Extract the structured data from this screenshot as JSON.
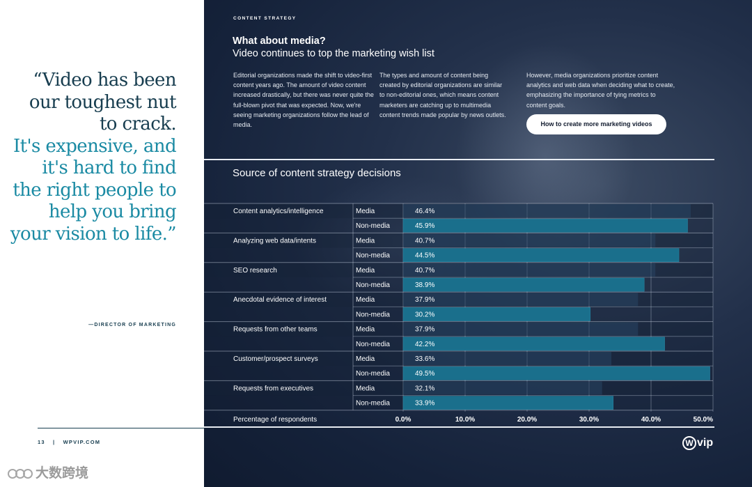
{
  "quote": {
    "part1": "“Video has been our toughest nut to crack.",
    "part2": "It's expensive, and it's hard to find the right people to help you bring your vision to life.”",
    "attribution": "—DIRECTOR OF MARKETING"
  },
  "footer": {
    "page": "13",
    "separator": "|",
    "site": "WPVIP.COM"
  },
  "watermark": {
    "text": "大数跨境"
  },
  "panel": {
    "kicker": "CONTENT STRATEGY",
    "title": "What about media?",
    "subtitle": "Video continues to top the marketing wish list",
    "col1": "Editorial organizations made the shift to video-first content years ago. The amount of video content increased drastically, but there was never quite the full-blown pivot that was expected. Now, we're seeing marketing organizations follow the lead of media.",
    "col2": "The types and amount of content being created by editorial organizations are similar to non-editorial ones, which means content marketers are catching up to multimedia content trends made popular by news outlets.",
    "col3": "However, media organizations prioritize content analytics and web data when deciding what to create, emphasizing the importance of tying metrics to content goals.",
    "cta": "How to create more marketing videos",
    "logo": "vip",
    "logo_mark": "W"
  },
  "colors": {
    "bar": "#1a6f8c",
    "navy": "#173d4f",
    "teal": "#1a8aa3"
  },
  "chart_data": {
    "type": "bar",
    "orientation": "horizontal",
    "title": "Source of content strategy decisions",
    "xlabel": "Percentage of respondents",
    "xlim": [
      0,
      50
    ],
    "ticks": [
      0,
      10,
      20,
      30,
      40,
      50
    ],
    "tick_labels": [
      "0.0%",
      "10.0%",
      "20.0%",
      "30.0%",
      "40.0%",
      "50.0%"
    ],
    "series_names": [
      "Media",
      "Non-media"
    ],
    "categories": [
      "Content analytics/intelligence",
      "Analyzing web data/intents",
      "SEO research",
      "Anecdotal evidence of interest",
      "Requests from other teams",
      "Customer/prospect surveys",
      "Requests from executives"
    ],
    "series": [
      {
        "name": "Media",
        "values": [
          46.4,
          40.7,
          40.7,
          37.9,
          37.9,
          33.6,
          32.1
        ],
        "labels": [
          "46.4%",
          "40.7%",
          "40.7%",
          "37.9%",
          "37.9%",
          "33.6%",
          "32.1%"
        ]
      },
      {
        "name": "Non-media",
        "values": [
          45.9,
          44.5,
          38.9,
          30.2,
          42.2,
          49.5,
          33.9
        ],
        "labels": [
          "45.9%",
          "44.5%",
          "38.9%",
          "30.2%",
          "42.2%",
          "49.5%",
          "33.9%"
        ]
      }
    ]
  }
}
